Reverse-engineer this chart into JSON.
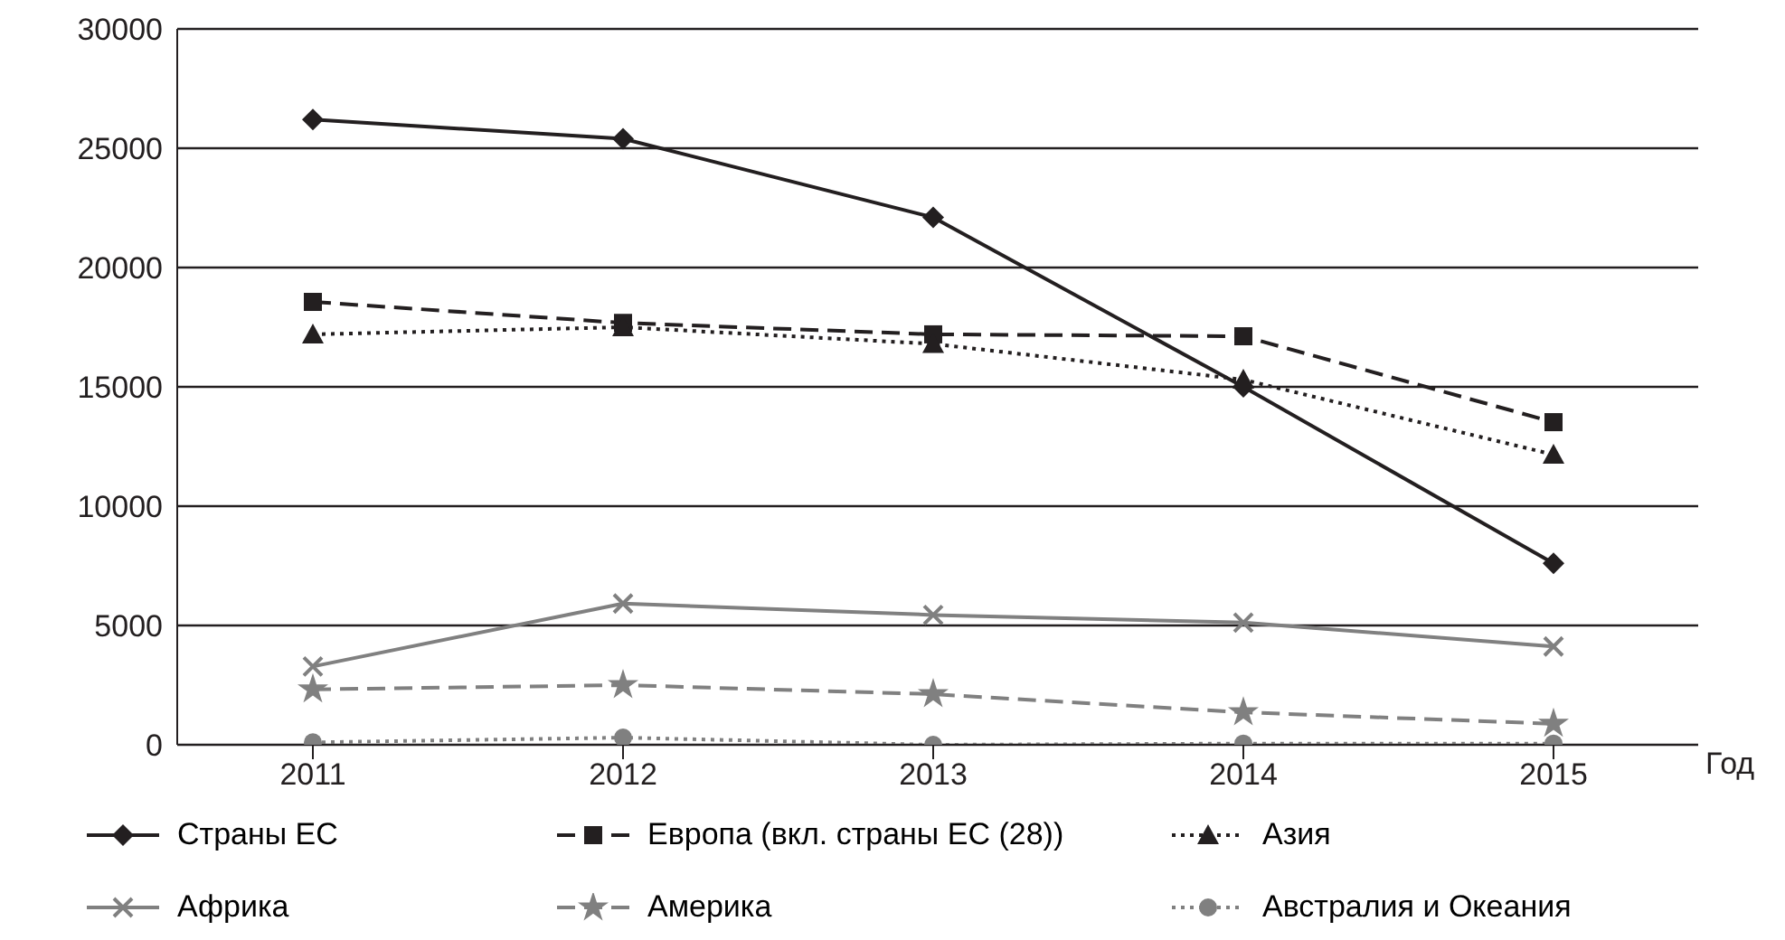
{
  "chart_data": {
    "type": "line",
    "xlabel": "Год",
    "categories": [
      "2011",
      "2012",
      "2013",
      "2014",
      "2015"
    ],
    "ylim": [
      0,
      30000
    ],
    "yticks": [
      0,
      5000,
      10000,
      15000,
      20000,
      25000,
      30000
    ],
    "grid": "y",
    "legend": "bottom",
    "series": [
      {
        "name": "Страны ЕС",
        "color": "#231f20",
        "marker": "diamond",
        "line_style": "solid",
        "values": [
          26200,
          25400,
          22100,
          15000,
          7600
        ]
      },
      {
        "name": "Европа (вкл. страны ЕС (28))",
        "color": "#231f20",
        "marker": "square",
        "line_style": "dashed",
        "values": [
          18560,
          17680,
          17200,
          17120,
          13520
        ]
      },
      {
        "name": "Азия",
        "color": "#231f20",
        "marker": "triangle",
        "line_style": "dotted",
        "values": [
          17200,
          17500,
          16800,
          15300,
          12160
        ]
      },
      {
        "name": "Африка",
        "color": "#808080",
        "marker": "cross",
        "line_style": "solid",
        "values": [
          3280,
          5920,
          5440,
          5120,
          4120
        ]
      },
      {
        "name": "Америка",
        "color": "#808080",
        "marker": "star",
        "line_style": "dashed",
        "values": [
          2320,
          2500,
          2120,
          1360,
          880
        ]
      },
      {
        "name": "Австралия и Океания",
        "color": "#808080",
        "marker": "circle",
        "line_style": "dotted",
        "values": [
          100,
          300,
          0,
          50,
          50
        ]
      }
    ]
  }
}
